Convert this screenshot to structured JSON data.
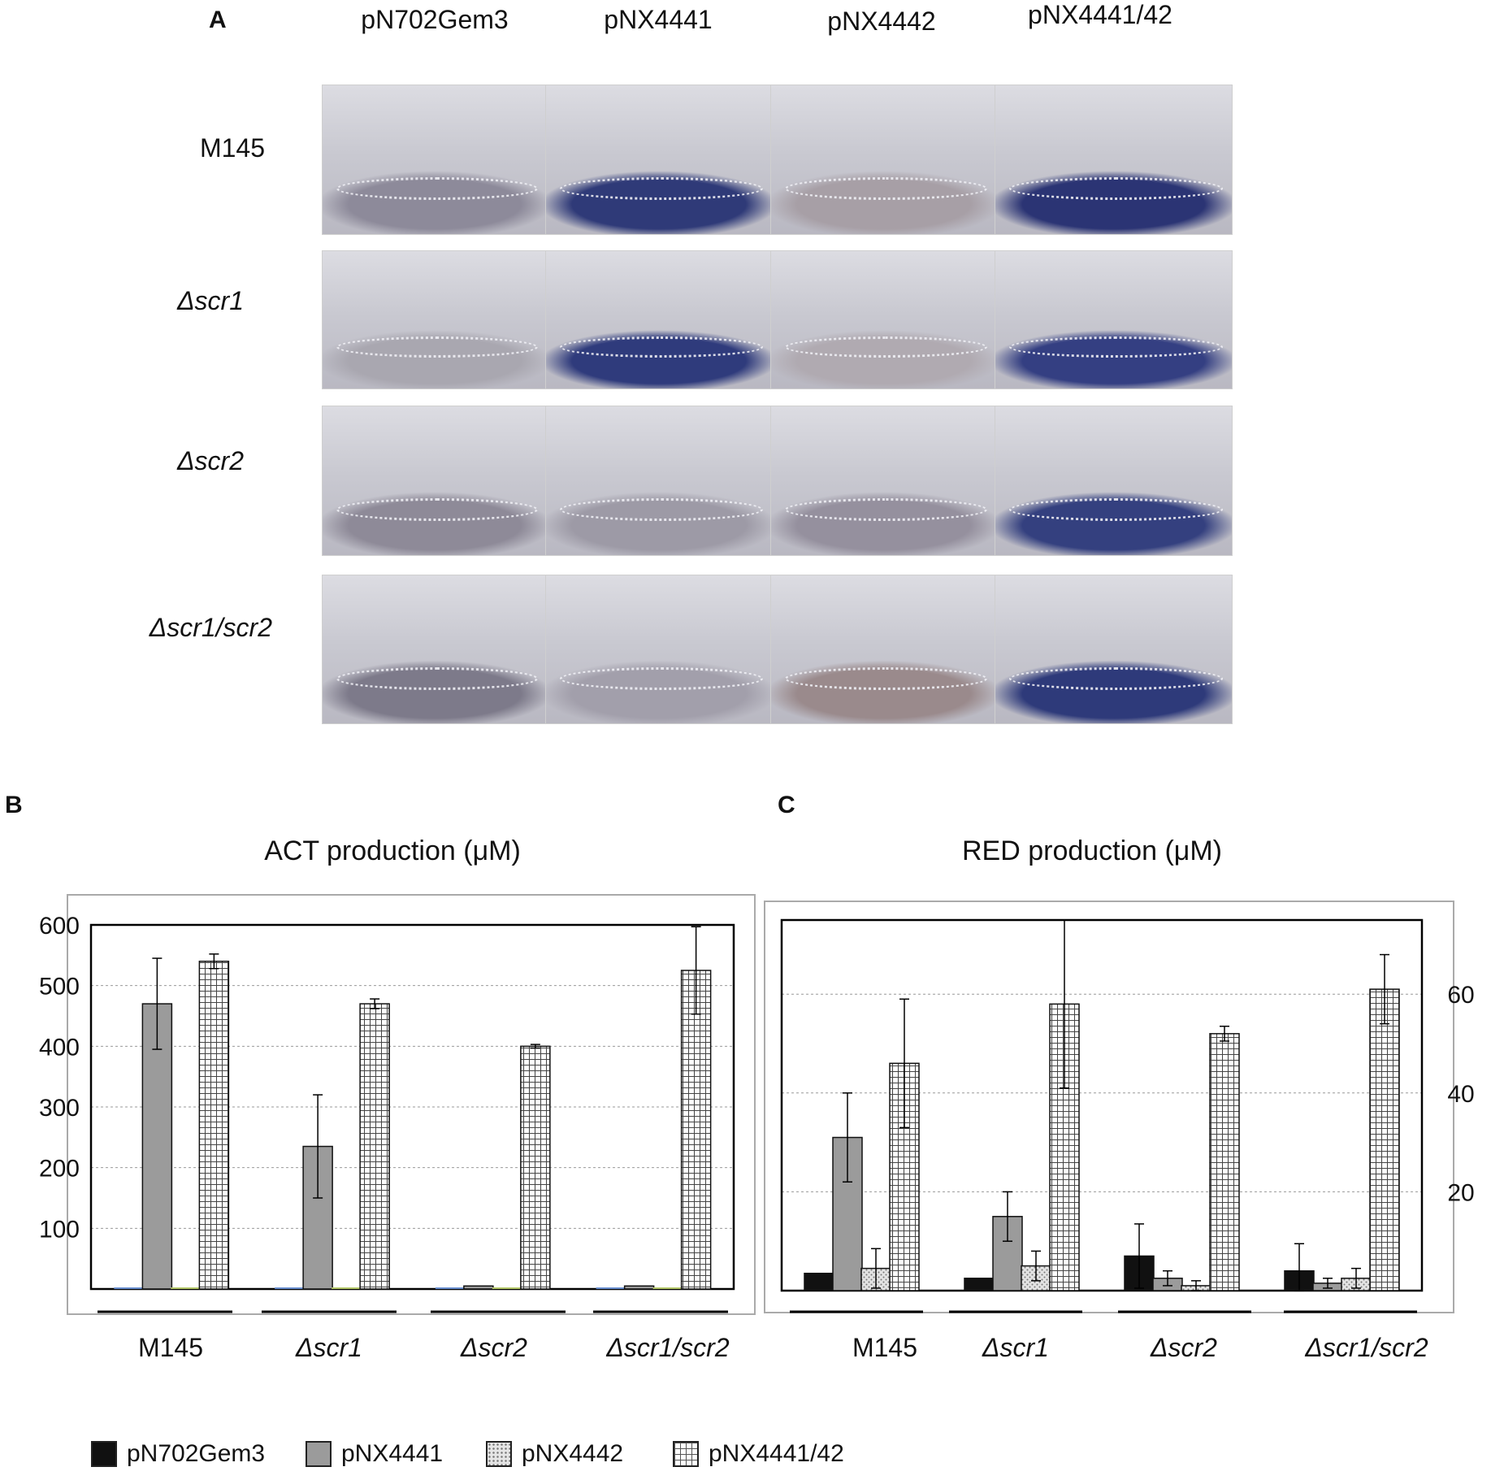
{
  "panel_a": {
    "letter": "A",
    "columns": [
      "pN702Gem3",
      "pNX4441",
      "pNX4442",
      "pNX4441/42"
    ],
    "rows": [
      "M145",
      "Δscr1",
      "Δscr2",
      "Δscr1/scr2"
    ],
    "cell_colors": [
      [
        "#8d8a9a",
        "#2f3a78",
        "#a79fa6",
        "#2b3474"
      ],
      [
        "#a9a7b0",
        "#2f3b7c",
        "#b0aab1",
        "#343f82"
      ],
      [
        "#8e8a98",
        "#9d9aa6",
        "#95909e",
        "#34407f"
      ],
      [
        "#7d7a8a",
        "#a29fab",
        "#9a8a8c",
        "#2e3a7a"
      ]
    ]
  },
  "panel_b": {
    "letter": "B",
    "title": "ACT production (μM)"
  },
  "panel_c": {
    "letter": "C",
    "title": "RED production (μM)"
  },
  "legend": [
    {
      "label": "pN702Gem3",
      "icon": "solid-black-swatch"
    },
    {
      "label": "pNX4441",
      "icon": "solid-gray-swatch"
    },
    {
      "label": "pNX4442",
      "icon": "dotted-swatch"
    },
    {
      "label": "pNX4441/42",
      "icon": "grid-swatch"
    }
  ],
  "chart_data": [
    {
      "type": "bar",
      "title": "ACT production (μM)",
      "categories": [
        "M145",
        "Δscr1",
        "Δscr2",
        "Δscr1/scr2"
      ],
      "ylim": [
        0,
        600
      ],
      "yticks": [
        100,
        200,
        300,
        400,
        500,
        600
      ],
      "grid": true,
      "series": [
        {
          "name": "pN702Gem3",
          "values": [
            0,
            0,
            0,
            0
          ],
          "errors": [
            0,
            0,
            0,
            0
          ]
        },
        {
          "name": "pNX4441",
          "values": [
            470,
            235,
            5,
            5
          ],
          "errors": [
            75,
            85,
            0,
            0
          ]
        },
        {
          "name": "pNX4442",
          "values": [
            0,
            0,
            0,
            0
          ],
          "errors": [
            0,
            0,
            0,
            0
          ]
        },
        {
          "name": "pNX4441/42",
          "values": [
            540,
            470,
            400,
            525
          ],
          "errors": [
            12,
            8,
            3,
            72
          ]
        }
      ]
    },
    {
      "type": "bar",
      "title": "RED production (μM)",
      "categories": [
        "M145",
        "Δscr1",
        "Δscr2",
        "Δscr1/scr2"
      ],
      "ylim": [
        0,
        75
      ],
      "yticks": [
        20,
        40,
        60
      ],
      "grid": true,
      "series": [
        {
          "name": "pN702Gem3",
          "values": [
            3.5,
            2.5,
            7,
            4
          ],
          "errors": [
            0,
            0,
            6.5,
            5.5
          ]
        },
        {
          "name": "pNX4441",
          "values": [
            31,
            15,
            2.5,
            1.5
          ],
          "errors": [
            9,
            5,
            1.5,
            1
          ]
        },
        {
          "name": "pNX4442",
          "values": [
            4.5,
            5,
            1,
            2.5
          ],
          "errors": [
            4,
            3,
            1,
            2
          ]
        },
        {
          "name": "pNX4441/42",
          "values": [
            46,
            58,
            52,
            61
          ],
          "errors": [
            13,
            17,
            1.5,
            7
          ]
        }
      ]
    }
  ],
  "colors": {
    "pN702Gem3": "#111111",
    "pNX4441": "#9b9b9b",
    "pNX4442": "#cfcfcf",
    "pNX4441/42": "#ffffff",
    "grid": "#999999",
    "frame": "#aaaaaa"
  }
}
